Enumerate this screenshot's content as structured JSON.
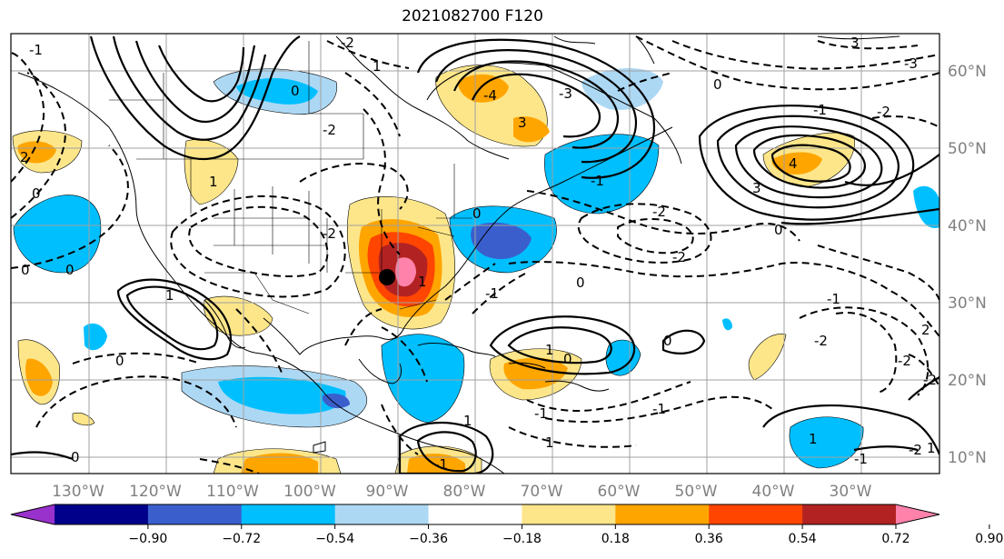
{
  "title": "2021082700 F120",
  "lon_labels": [
    "130°W",
    "120°W",
    "110°W",
    "100°W",
    "90°W",
    "80°W",
    "70°W",
    "60°W",
    "50°W",
    "40°W",
    "30°W"
  ],
  "lat_labels": [
    "60°N",
    "50°N",
    "40°N",
    "30°N",
    "20°N",
    "10°N"
  ],
  "colorbar": {
    "ticks": [
      "−0.90",
      "−0.72",
      "−0.54",
      "−0.36",
      "−0.18",
      "0.18",
      "0.36",
      "0.54",
      "0.72",
      "0.90"
    ],
    "colors": [
      "#9932cc",
      "#00008b",
      "#3a5fcd",
      "#00bfff",
      "#add8f4",
      "#ffffff",
      "#fde68a",
      "#ffa500",
      "#ff4500",
      "#b22222",
      "#ff82ab"
    ]
  },
  "contour_labels": [
    "-1",
    "-2",
    "1",
    "0",
    "-2",
    "3",
    "-3",
    "0",
    "-2",
    "-1",
    "0",
    "3",
    "-3",
    "-4",
    "2",
    "1",
    "4",
    "3",
    "0",
    "-2",
    "-1",
    "0",
    "-2",
    "0",
    "-2",
    "0",
    "1",
    "0",
    "-1",
    "-1",
    "1",
    "0",
    "1",
    "-2",
    "0",
    "0",
    "-2",
    "-1",
    "-1",
    "-2",
    "1",
    "1",
    "-1",
    "2",
    "1",
    "-2",
    "0",
    "-1",
    "1"
  ]
}
